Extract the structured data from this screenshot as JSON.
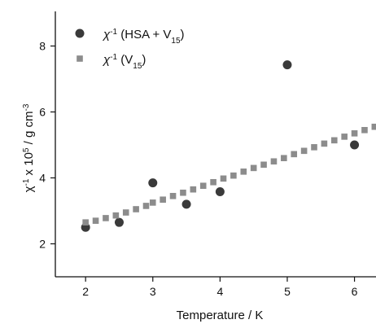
{
  "chart_data": {
    "type": "scatter",
    "xlabel": "Temperature / K",
    "ylabel": {
      "base": "χ",
      "sup1": "-1",
      "mid": " x 10",
      "sup2": "5",
      "tail": " / g cm",
      "sup3": "-3"
    },
    "xlim": [
      1.55,
      6.32
    ],
    "ylim": [
      1.0,
      9.05
    ],
    "xticks": [
      2,
      3,
      4,
      5,
      6
    ],
    "yticks": [
      2,
      4,
      6,
      8
    ],
    "legend_position": "top-left",
    "grid": false,
    "series": [
      {
        "name": {
          "base": "χ",
          "sup": "-1",
          "pre": " (HSA + V",
          "sub": "15",
          "post": ")"
        },
        "marker": "circle",
        "color": "#3a3a3a",
        "x": [
          2.0,
          2.5,
          3.0,
          3.5,
          4.0,
          5.0,
          6.0
        ],
        "y": [
          2.5,
          2.65,
          3.85,
          3.2,
          3.58,
          7.43,
          5.0
        ]
      },
      {
        "name": {
          "base": "χ",
          "sup": "-1",
          "pre": " (V",
          "sub": "15",
          "post": ")"
        },
        "marker": "square",
        "color": "#8c8c8c",
        "x": [
          2.0,
          2.15,
          2.3,
          2.45,
          2.6,
          2.75,
          2.9,
          3.0,
          3.15,
          3.3,
          3.45,
          3.6,
          3.75,
          3.9,
          4.05,
          4.2,
          4.35,
          4.5,
          4.65,
          4.8,
          4.95,
          5.1,
          5.25,
          5.4,
          5.55,
          5.7,
          5.85,
          6.0,
          6.15,
          6.3
        ],
        "y": [
          2.65,
          2.7,
          2.78,
          2.86,
          2.95,
          3.05,
          3.15,
          3.25,
          3.34,
          3.45,
          3.55,
          3.65,
          3.76,
          3.87,
          3.98,
          4.07,
          4.19,
          4.3,
          4.4,
          4.5,
          4.6,
          4.72,
          4.82,
          4.93,
          5.04,
          5.14,
          5.25,
          5.35,
          5.45,
          5.55
        ]
      }
    ]
  }
}
